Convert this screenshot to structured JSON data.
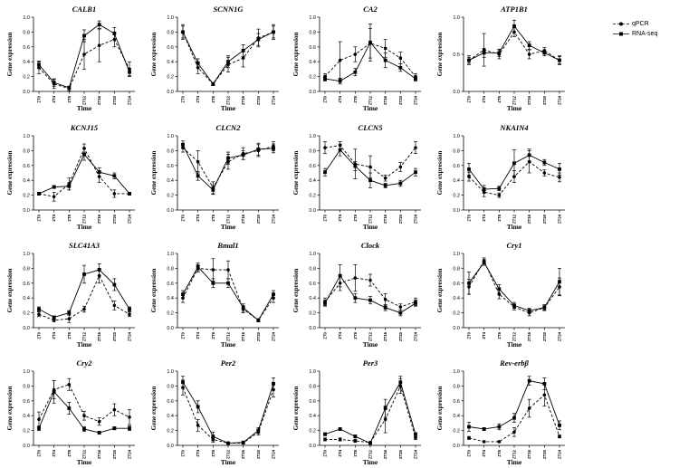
{
  "legend": {
    "qpcr_label": "qPCR",
    "rnaseq_label": "RNA-seq"
  },
  "chart_data": [
    {
      "type": "line",
      "title": "CALB1",
      "xlabel": "Time",
      "ylabel": "Gene expression",
      "ylim": [
        0,
        1.0
      ],
      "yticks": [
        "0.0",
        "0.2",
        "0.4",
        "0.6",
        "0.8",
        "1.0"
      ],
      "categories": [
        "ZT0",
        "ZT4",
        "ZT8",
        "ZT12",
        "ZT16",
        "ZT20",
        "ZT24"
      ],
      "series": [
        {
          "name": "qPCR",
          "values": [
            0.32,
            0.1,
            0.04,
            0.5,
            0.62,
            0.7,
            0.3
          ],
          "errors": [
            0.08,
            0.06,
            0.03,
            0.2,
            0.22,
            0.1,
            0.1
          ]
        },
        {
          "name": "RNA-seq",
          "values": [
            0.36,
            0.12,
            0.05,
            0.75,
            0.9,
            0.78,
            0.26
          ],
          "errors": [
            0.05,
            0.05,
            0.02,
            0.08,
            0.05,
            0.08,
            0.05
          ]
        }
      ]
    },
    {
      "type": "line",
      "title": "SCNN1G",
      "xlabel": "Time",
      "ylabel": "Gene expression",
      "ylim": [
        0,
        1.0
      ],
      "yticks": [
        "0.0",
        "0.2",
        "0.4",
        "0.6",
        "0.8",
        "1.0"
      ],
      "categories": [
        "ZT0",
        "ZT4",
        "ZT8",
        "ZT12",
        "ZT16",
        "ZT20",
        "ZT24"
      ],
      "series": [
        {
          "name": "qPCR",
          "values": [
            0.8,
            0.32,
            0.1,
            0.36,
            0.45,
            0.72,
            0.8
          ],
          "errors": [
            0.1,
            0.08,
            0.02,
            0.1,
            0.12,
            0.12,
            0.1
          ]
        },
        {
          "name": "RNA-seq",
          "values": [
            0.8,
            0.38,
            0.1,
            0.4,
            0.55,
            0.7,
            0.8
          ],
          "errors": [
            0.08,
            0.06,
            0.02,
            0.08,
            0.08,
            0.08,
            0.08
          ]
        }
      ]
    },
    {
      "type": "line",
      "title": "CA2",
      "xlabel": "Time",
      "ylabel": "Gene expression",
      "ylim": [
        0,
        1.0
      ],
      "yticks": [
        "0.0",
        "0.2",
        "0.4",
        "0.6",
        "0.8",
        "1.0"
      ],
      "categories": [
        "ZT0",
        "ZT4",
        "ZT8",
        "ZT12",
        "ZT16",
        "ZT20",
        "ZT24"
      ],
      "series": [
        {
          "name": "qPCR",
          "values": [
            0.2,
            0.42,
            0.5,
            0.65,
            0.58,
            0.45,
            0.2
          ],
          "errors": [
            0.04,
            0.25,
            0.1,
            0.2,
            0.12,
            0.08,
            0.04
          ]
        },
        {
          "name": "RNA-seq",
          "values": [
            0.17,
            0.14,
            0.26,
            0.66,
            0.42,
            0.32,
            0.17
          ],
          "errors": [
            0.03,
            0.04,
            0.05,
            0.25,
            0.1,
            0.05,
            0.03
          ]
        }
      ]
    },
    {
      "type": "line",
      "title": "ATP1B1",
      "xlabel": "Time",
      "ylabel": "Gene expression",
      "ylim": [
        0,
        1.0
      ],
      "yticks": [
        "0.0",
        "0.5",
        "1.0"
      ],
      "categories": [
        "ZT0",
        "ZT4",
        "ZT8",
        "ZT12",
        "ZT16",
        "ZT20",
        "ZT24"
      ],
      "series": [
        {
          "name": "qPCR",
          "values": [
            0.42,
            0.56,
            0.5,
            0.8,
            0.5,
            0.55,
            0.42
          ],
          "errors": [
            0.06,
            0.22,
            0.06,
            0.06,
            0.06,
            0.04,
            0.06
          ]
        },
        {
          "name": "RNA-seq",
          "values": [
            0.42,
            0.52,
            0.52,
            0.88,
            0.62,
            0.52,
            0.42
          ],
          "errors": [
            0.04,
            0.06,
            0.05,
            0.08,
            0.05,
            0.04,
            0.05
          ]
        }
      ]
    },
    {
      "type": "line",
      "title": "KCNJ15",
      "xlabel": "Time",
      "ylabel": "Gene expression",
      "ylim": [
        0,
        1.0
      ],
      "yticks": [
        "0.0",
        "0.2",
        "0.4",
        "0.6",
        "0.8",
        "1.0"
      ],
      "categories": [
        "ZT0",
        "ZT4",
        "ZT8",
        "ZT12",
        "ZT16",
        "ZT20",
        "ZT24"
      ],
      "series": [
        {
          "name": "qPCR",
          "values": [
            0.22,
            0.18,
            0.35,
            0.83,
            0.45,
            0.22,
            0.22
          ],
          "errors": [
            0.02,
            0.06,
            0.08,
            0.06,
            0.08,
            0.05,
            0.02
          ]
        },
        {
          "name": "RNA-seq",
          "values": [
            0.22,
            0.31,
            0.32,
            0.75,
            0.51,
            0.46,
            0.22
          ],
          "errors": [
            0.02,
            0.02,
            0.05,
            0.08,
            0.06,
            0.04,
            0.02
          ]
        }
      ]
    },
    {
      "type": "line",
      "title": "CLCN2",
      "xlabel": "Time",
      "ylabel": "Gene expression",
      "ylim": [
        0,
        1.0
      ],
      "yticks": [
        "0.0",
        "0.2",
        "0.4",
        "0.6",
        "0.8",
        "1.0"
      ],
      "categories": [
        "ZT0",
        "ZT4",
        "ZT8",
        "ZT12",
        "ZT16",
        "ZT20",
        "ZT24"
      ],
      "series": [
        {
          "name": "qPCR",
          "values": [
            0.84,
            0.65,
            0.3,
            0.65,
            0.76,
            0.8,
            0.86
          ],
          "errors": [
            0.06,
            0.15,
            0.08,
            0.1,
            0.08,
            0.08,
            0.06
          ]
        },
        {
          "name": "RNA-seq",
          "values": [
            0.88,
            0.46,
            0.27,
            0.7,
            0.74,
            0.82,
            0.83
          ],
          "errors": [
            0.05,
            0.06,
            0.06,
            0.08,
            0.06,
            0.08,
            0.06
          ]
        }
      ]
    },
    {
      "type": "line",
      "title": "CLCN5",
      "xlabel": "Time",
      "ylabel": "Gene expression",
      "ylim": [
        0,
        1.0
      ],
      "yticks": [
        "0.0",
        "0.2",
        "0.4",
        "0.6",
        "0.8",
        "1.0"
      ],
      "categories": [
        "ZT0",
        "ZT4",
        "ZT8",
        "ZT12",
        "ZT16",
        "ZT20",
        "ZT24"
      ],
      "series": [
        {
          "name": "qPCR",
          "values": [
            0.84,
            0.87,
            0.62,
            0.58,
            0.43,
            0.58,
            0.84
          ],
          "errors": [
            0.08,
            0.05,
            0.2,
            0.15,
            0.04,
            0.06,
            0.08
          ]
        },
        {
          "name": "RNA-seq",
          "values": [
            0.51,
            0.81,
            0.59,
            0.4,
            0.33,
            0.36,
            0.51
          ],
          "errors": [
            0.05,
            0.08,
            0.06,
            0.1,
            0.03,
            0.04,
            0.05
          ]
        }
      ]
    },
    {
      "type": "line",
      "title": "NKAIN4",
      "xlabel": "Time",
      "ylabel": "Gene expression",
      "ylim": [
        0,
        1.0
      ],
      "yticks": [
        "0.0",
        "0.2",
        "0.4",
        "0.6",
        "0.8",
        "1.0"
      ],
      "categories": [
        "ZT0",
        "ZT4",
        "ZT8",
        "ZT12",
        "ZT16",
        "ZT20",
        "ZT24"
      ],
      "series": [
        {
          "name": "qPCR",
          "values": [
            0.45,
            0.24,
            0.2,
            0.45,
            0.65,
            0.5,
            0.44
          ],
          "errors": [
            0.06,
            0.06,
            0.03,
            0.08,
            0.15,
            0.04,
            0.06
          ]
        },
        {
          "name": "RNA-seq",
          "values": [
            0.55,
            0.28,
            0.29,
            0.63,
            0.74,
            0.64,
            0.55
          ],
          "errors": [
            0.08,
            0.05,
            0.03,
            0.18,
            0.08,
            0.04,
            0.08
          ]
        }
      ]
    },
    {
      "type": "line",
      "title": "SLC41A3",
      "xlabel": "Time",
      "ylabel": "Gene expression",
      "ylim": [
        0,
        1.0
      ],
      "yticks": [
        "0.0",
        "0.2",
        "0.4",
        "0.6",
        "0.8",
        "1.0"
      ],
      "categories": [
        "ZT0",
        "ZT4",
        "ZT8",
        "ZT12",
        "ZT16",
        "ZT20",
        "ZT24"
      ],
      "series": [
        {
          "name": "qPCR",
          "values": [
            0.18,
            0.1,
            0.12,
            0.25,
            0.7,
            0.3,
            0.18
          ],
          "errors": [
            0.03,
            0.02,
            0.05,
            0.04,
            0.1,
            0.06,
            0.03
          ]
        },
        {
          "name": "RNA-seq",
          "values": [
            0.25,
            0.14,
            0.2,
            0.72,
            0.78,
            0.58,
            0.25
          ],
          "errors": [
            0.03,
            0.02,
            0.03,
            0.12,
            0.08,
            0.08,
            0.03
          ]
        }
      ]
    },
    {
      "type": "line",
      "title": "Bmal1",
      "xlabel": "Time",
      "ylabel": "Gene expression",
      "ylim": [
        0,
        1.0
      ],
      "yticks": [
        "0.0",
        "0.2",
        "0.4",
        "0.6",
        "0.8",
        "1.0"
      ],
      "categories": [
        "ZT0",
        "ZT4",
        "ZT8",
        "ZT12",
        "ZT16",
        "ZT20",
        "ZT24"
      ],
      "series": [
        {
          "name": "qPCR",
          "values": [
            0.4,
            0.8,
            0.78,
            0.78,
            0.25,
            0.1,
            0.4
          ],
          "errors": [
            0.06,
            0.05,
            0.15,
            0.12,
            0.05,
            0.02,
            0.06
          ]
        },
        {
          "name": "RNA-seq",
          "values": [
            0.45,
            0.82,
            0.6,
            0.6,
            0.27,
            0.1,
            0.45
          ],
          "errors": [
            0.05,
            0.05,
            0.06,
            0.06,
            0.05,
            0.02,
            0.05
          ]
        }
      ]
    },
    {
      "type": "line",
      "title": "Clock",
      "xlabel": "Time",
      "ylabel": "Gene expression",
      "ylim": [
        0,
        1.0
      ],
      "yticks": [
        "0.0",
        "0.2",
        "0.4",
        "0.6",
        "0.8",
        "1.0"
      ],
      "categories": [
        "ZT0",
        "ZT4",
        "ZT8",
        "ZT12",
        "ZT16",
        "ZT20",
        "ZT24"
      ],
      "series": [
        {
          "name": "qPCR",
          "values": [
            0.35,
            0.6,
            0.67,
            0.64,
            0.38,
            0.28,
            0.35
          ],
          "errors": [
            0.05,
            0.1,
            0.18,
            0.08,
            0.08,
            0.04,
            0.05
          ]
        },
        {
          "name": "RNA-seq",
          "values": [
            0.33,
            0.7,
            0.4,
            0.37,
            0.27,
            0.2,
            0.33
          ],
          "errors": [
            0.04,
            0.15,
            0.06,
            0.05,
            0.04,
            0.04,
            0.04
          ]
        }
      ]
    },
    {
      "type": "line",
      "title": "Cry1",
      "xlabel": "Time",
      "ylabel": "Gene expression",
      "ylim": [
        0,
        1.0
      ],
      "yticks": [
        "0.0",
        "0.2",
        "0.4",
        "0.6",
        "0.8",
        "1.0"
      ],
      "categories": [
        "ZT0",
        "ZT4",
        "ZT8",
        "ZT12",
        "ZT16",
        "ZT20",
        "ZT24"
      ],
      "series": [
        {
          "name": "qPCR",
          "values": [
            0.55,
            0.9,
            0.45,
            0.28,
            0.2,
            0.27,
            0.55
          ],
          "errors": [
            0.1,
            0.04,
            0.06,
            0.04,
            0.04,
            0.04,
            0.12
          ]
        },
        {
          "name": "RNA-seq",
          "values": [
            0.6,
            0.88,
            0.52,
            0.3,
            0.23,
            0.27,
            0.62
          ],
          "errors": [
            0.15,
            0.04,
            0.06,
            0.04,
            0.03,
            0.03,
            0.18
          ]
        }
      ]
    },
    {
      "type": "line",
      "title": "Cry2",
      "xlabel": "Time",
      "ylabel": "Gene expression",
      "ylim": [
        0,
        1.0
      ],
      "yticks": [
        "0.0",
        "0.2",
        "0.4",
        "0.6",
        "0.8",
        "1.0"
      ],
      "categories": [
        "ZT0",
        "ZT4",
        "ZT8",
        "ZT12",
        "ZT16",
        "ZT20",
        "ZT24"
      ],
      "series": [
        {
          "name": "qPCR",
          "values": [
            0.35,
            0.75,
            0.82,
            0.4,
            0.32,
            0.48,
            0.38
          ],
          "errors": [
            0.1,
            0.12,
            0.08,
            0.06,
            0.05,
            0.08,
            0.1
          ]
        },
        {
          "name": "RNA-seq",
          "values": [
            0.23,
            0.72,
            0.5,
            0.22,
            0.17,
            0.23,
            0.23
          ],
          "errors": [
            0.03,
            0.15,
            0.08,
            0.03,
            0.02,
            0.02,
            0.03
          ]
        }
      ]
    },
    {
      "type": "line",
      "title": "Per2",
      "xlabel": "Time",
      "ylabel": "Gene expression",
      "ylim": [
        0,
        1.0
      ],
      "yticks": [
        "0.0",
        "0.2",
        "0.4",
        "0.6",
        "0.8",
        "1.0"
      ],
      "categories": [
        "ZT0",
        "ZT4",
        "ZT8",
        "ZT12",
        "ZT16",
        "ZT20",
        "ZT24"
      ],
      "series": [
        {
          "name": "qPCR",
          "values": [
            0.78,
            0.27,
            0.08,
            0.03,
            0.03,
            0.18,
            0.75
          ],
          "errors": [
            0.1,
            0.08,
            0.04,
            0.01,
            0.01,
            0.04,
            0.1
          ]
        },
        {
          "name": "RNA-seq",
          "values": [
            0.85,
            0.52,
            0.12,
            0.03,
            0.04,
            0.2,
            0.83
          ],
          "errors": [
            0.08,
            0.08,
            0.06,
            0.01,
            0.01,
            0.04,
            0.08
          ]
        }
      ]
    },
    {
      "type": "line",
      "title": "Per3",
      "xlabel": "Time",
      "ylabel": "Gene expression",
      "ylim": [
        0,
        1.0
      ],
      "yticks": [
        "0.0",
        "0.2",
        "0.4",
        "0.6",
        "0.8",
        "1.0"
      ],
      "categories": [
        "ZT0",
        "ZT4",
        "ZT8",
        "ZT12",
        "ZT16",
        "ZT20",
        "ZT24"
      ],
      "series": [
        {
          "name": "qPCR",
          "values": [
            0.08,
            0.08,
            0.06,
            0.04,
            0.35,
            0.8,
            0.1
          ],
          "errors": [
            0.02,
            0.02,
            0.02,
            0.01,
            0.18,
            0.1,
            0.02
          ]
        },
        {
          "name": "RNA-seq",
          "values": [
            0.15,
            0.22,
            0.12,
            0.03,
            0.5,
            0.85,
            0.15
          ],
          "errors": [
            0.02,
            0.02,
            0.02,
            0.01,
            0.12,
            0.08,
            0.02
          ]
        }
      ]
    },
    {
      "type": "line",
      "title": "Rev-erbβ",
      "xlabel": "Time",
      "ylabel": "Gene expression",
      "ylim": [
        0,
        1.0
      ],
      "yticks": [
        "0.0",
        "0.2",
        "0.4",
        "0.6",
        "0.8",
        "1.0"
      ],
      "categories": [
        "ZT0",
        "ZT4",
        "ZT8",
        "ZT12",
        "ZT16",
        "ZT20",
        "ZT24"
      ],
      "series": [
        {
          "name": "qPCR",
          "values": [
            0.1,
            0.05,
            0.05,
            0.18,
            0.5,
            0.68,
            0.12
          ],
          "errors": [
            0.02,
            0.01,
            0.01,
            0.06,
            0.12,
            0.15,
            0.02
          ]
        },
        {
          "name": "RNA-seq",
          "values": [
            0.25,
            0.22,
            0.25,
            0.37,
            0.87,
            0.83,
            0.27
          ],
          "errors": [
            0.06,
            0.02,
            0.04,
            0.06,
            0.06,
            0.08,
            0.06
          ]
        }
      ]
    }
  ]
}
